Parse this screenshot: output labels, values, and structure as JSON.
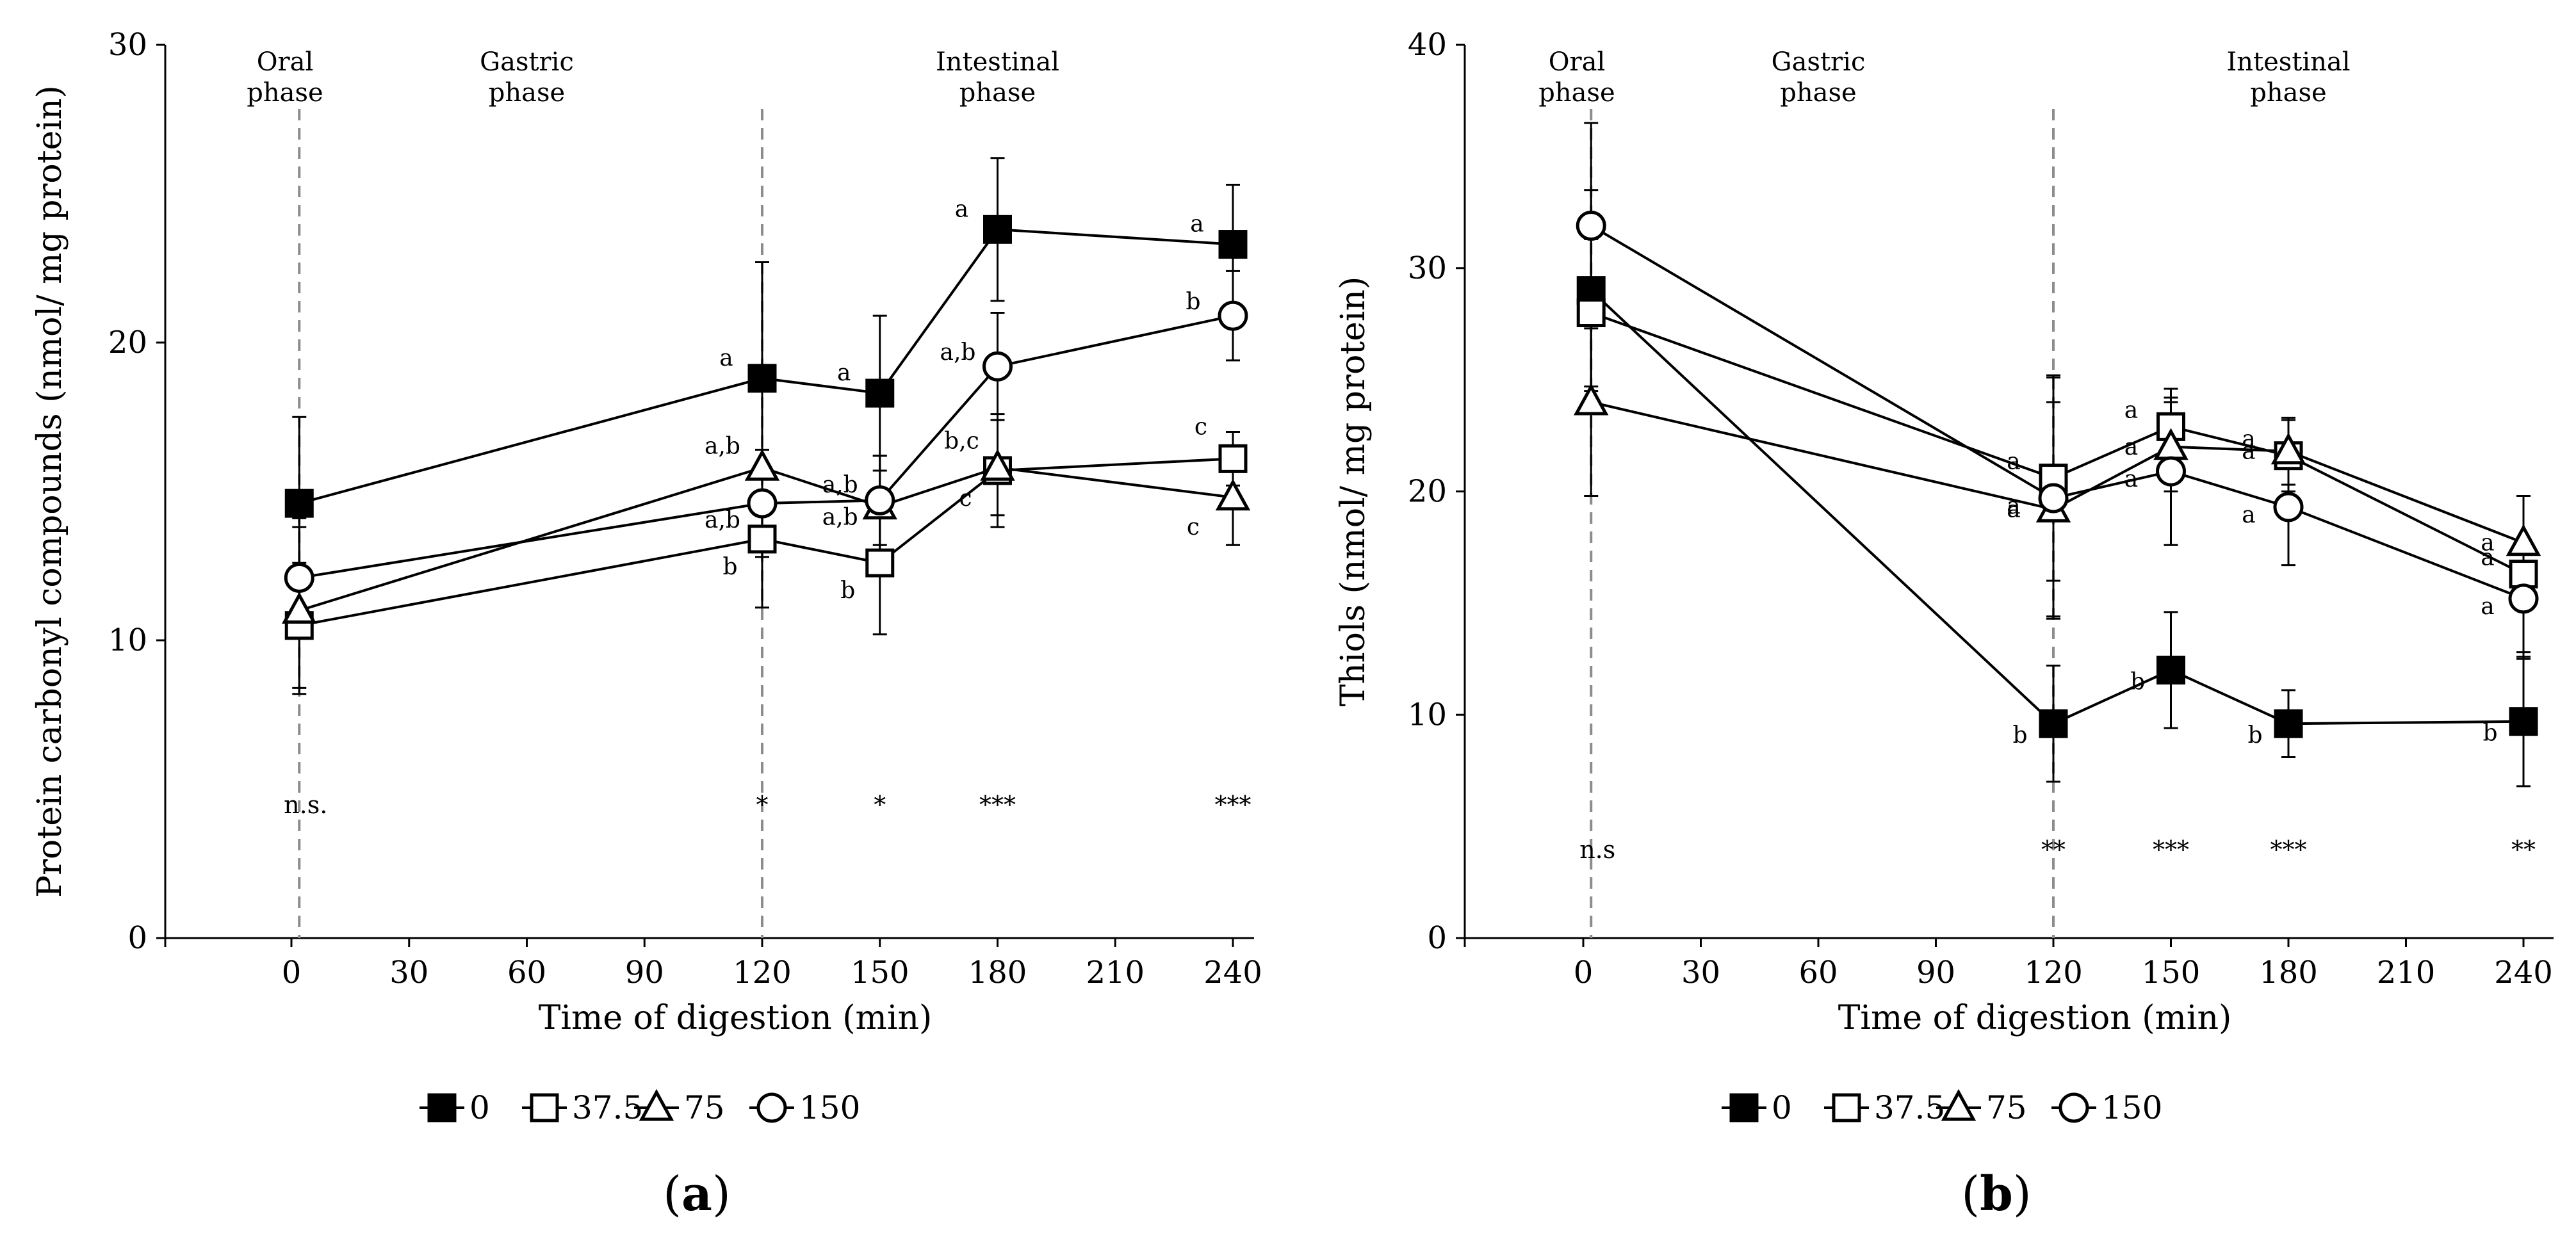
{
  "chart_data": [
    {
      "type": "line",
      "id": "a",
      "panel_label": "a",
      "ylabel": "Protein carbonyl compounds (nmol/ mg protein)",
      "xlabel": "Time of digestion (min)",
      "xlim": [
        -25,
        240
      ],
      "ylim": [
        0,
        30
      ],
      "x_ticks": [
        0,
        30,
        60,
        90,
        120,
        150,
        180,
        210,
        240
      ],
      "y_ticks": [
        0,
        10,
        20,
        30
      ],
      "phases": [
        {
          "name": "Oral phase",
          "lines": [
            "Oral",
            "phase"
          ],
          "x": 0
        },
        {
          "name": "Gastric phase",
          "lines": [
            "Gastric",
            "phase"
          ],
          "x": 60
        },
        {
          "name": "Intestinal phase",
          "lines": [
            "Intestinal",
            "phase"
          ],
          "x": 180
        }
      ],
      "phase_dividers": [
        2,
        120
      ],
      "significance": [
        {
          "x": 2,
          "label": "n.s."
        },
        {
          "x": 120,
          "label": "*"
        },
        {
          "x": 150,
          "label": "*"
        },
        {
          "x": 180,
          "label": "***"
        },
        {
          "x": 240,
          "label": "***"
        }
      ],
      "series": [
        {
          "name": "0",
          "marker": "square-filled",
          "points": [
            {
              "x": 2,
              "y": 14.6,
              "err": 2.9,
              "letter": ""
            },
            {
              "x": 120,
              "y": 18.8,
              "err": 3.9,
              "letter": "a"
            },
            {
              "x": 150,
              "y": 18.3,
              "err": 2.6,
              "letter": "a"
            },
            {
              "x": 180,
              "y": 23.8,
              "err": 2.4,
              "letter": "a"
            },
            {
              "x": 240,
              "y": 23.3,
              "err": 2.0,
              "letter": "a"
            }
          ]
        },
        {
          "name": "37.5",
          "marker": "square-open",
          "points": [
            {
              "x": 2,
              "y": 10.5,
              "err": 2.1,
              "letter": ""
            },
            {
              "x": 120,
              "y": 13.4,
              "err": 2.3,
              "letter": "b"
            },
            {
              "x": 150,
              "y": 12.6,
              "err": 2.4,
              "letter": "b"
            },
            {
              "x": 180,
              "y": 15.7,
              "err": 1.9,
              "letter": "c"
            },
            {
              "x": 240,
              "y": 16.1,
              "err": 0.9,
              "letter": "c"
            }
          ]
        },
        {
          "name": "75",
          "marker": "triangle-open",
          "points": [
            {
              "x": 2,
              "y": 11.0,
              "err": 2.8,
              "letter": ""
            },
            {
              "x": 120,
              "y": 15.8,
              "err": 2.8,
              "letter": "a,b"
            },
            {
              "x": 150,
              "y": 14.5,
              "err": 1.7,
              "letter": "a,b"
            },
            {
              "x": 180,
              "y": 15.8,
              "err": 1.6,
              "letter": ""
            },
            {
              "x": 240,
              "y": 14.8,
              "err": 1.6,
              "letter": "c"
            }
          ]
        },
        {
          "name": "150",
          "marker": "circle-open",
          "points": [
            {
              "x": 2,
              "y": 12.1,
              "err": 2.0,
              "letter": ""
            },
            {
              "x": 120,
              "y": 14.6,
              "err": 1.8,
              "letter": "a,b"
            },
            {
              "x": 150,
              "y": 14.7,
              "err": 1.5,
              "letter": "a,b"
            },
            {
              "x": 180,
              "y": 19.2,
              "err": 1.8,
              "letter": "a,b"
            },
            {
              "x": 240,
              "y": 20.9,
              "err": 1.5,
              "letter": "b"
            }
          ]
        }
      ],
      "extra_letters": [
        {
          "x": 180,
          "y": 15.8,
          "label": "b,c"
        }
      ]
    },
    {
      "type": "line",
      "id": "b",
      "panel_label": "b",
      "ylabel": "Thiols (nmol/ mg protein)",
      "xlabel": "Time of digestion (min)",
      "xlim": [
        -25,
        240
      ],
      "ylim": [
        0,
        40
      ],
      "x_ticks": [
        0,
        30,
        60,
        90,
        120,
        150,
        180,
        210,
        240
      ],
      "y_ticks": [
        0,
        10,
        20,
        30,
        40
      ],
      "phases": [
        {
          "name": "Oral phase",
          "lines": [
            "Oral",
            "phase"
          ],
          "x": 0
        },
        {
          "name": "Gastric phase",
          "lines": [
            "Gastric",
            "phase"
          ],
          "x": 60
        },
        {
          "name": "Intestinal phase",
          "lines": [
            "Intestinal",
            "phase"
          ],
          "x": 180
        }
      ],
      "phase_dividers": [
        2,
        120
      ],
      "significance": [
        {
          "x": 2,
          "label": "n.s"
        },
        {
          "x": 120,
          "label": "**"
        },
        {
          "x": 150,
          "label": "***"
        },
        {
          "x": 180,
          "label": "***"
        },
        {
          "x": 240,
          "label": "**"
        }
      ],
      "series": [
        {
          "name": "0",
          "marker": "square-filled",
          "points": [
            {
              "x": 2,
              "y": 29.0,
              "err": 4.5,
              "letter": ""
            },
            {
              "x": 120,
              "y": 9.6,
              "err": 2.6,
              "letter": "b"
            },
            {
              "x": 150,
              "y": 12.0,
              "err": 2.6,
              "letter": "b"
            },
            {
              "x": 180,
              "y": 9.6,
              "err": 1.5,
              "letter": "b"
            },
            {
              "x": 240,
              "y": 9.7,
              "err": 2.9,
              "letter": "b"
            }
          ]
        },
        {
          "name": "37.5",
          "marker": "square-open",
          "points": [
            {
              "x": 2,
              "y": 28.0,
              "err": 3.3,
              "letter": ""
            },
            {
              "x": 120,
              "y": 20.6,
              "err": 4.6,
              "letter": "a"
            },
            {
              "x": 150,
              "y": 22.9,
              "err": 1.7,
              "letter": "a"
            },
            {
              "x": 180,
              "y": 21.6,
              "err": 1.6,
              "letter": "a"
            },
            {
              "x": 240,
              "y": 16.3,
              "err": 3.5,
              "letter": "a"
            }
          ]
        },
        {
          "name": "75",
          "marker": "triangle-open",
          "points": [
            {
              "x": 2,
              "y": 24.0,
              "err": 4.2,
              "letter": ""
            },
            {
              "x": 120,
              "y": 19.2,
              "err": 4.8,
              "letter": "a"
            },
            {
              "x": 150,
              "y": 22.0,
              "err": 2.0,
              "letter": "a"
            },
            {
              "x": 180,
              "y": 21.8,
              "err": 1.5,
              "letter": "a"
            },
            {
              "x": 240,
              "y": 17.7,
              "err": 2.1,
              "letter": "a"
            }
          ]
        },
        {
          "name": "150",
          "marker": "circle-open",
          "points": [
            {
              "x": 2,
              "y": 31.9,
              "err": 4.6,
              "letter": ""
            },
            {
              "x": 120,
              "y": 19.7,
              "err": 5.4,
              "letter": "a"
            },
            {
              "x": 150,
              "y": 20.9,
              "err": 3.3,
              "letter": "a"
            },
            {
              "x": 180,
              "y": 19.3,
              "err": 2.6,
              "letter": "a"
            },
            {
              "x": 240,
              "y": 15.2,
              "err": 2.7,
              "letter": "a"
            }
          ]
        }
      ],
      "extra_letters": []
    }
  ]
}
